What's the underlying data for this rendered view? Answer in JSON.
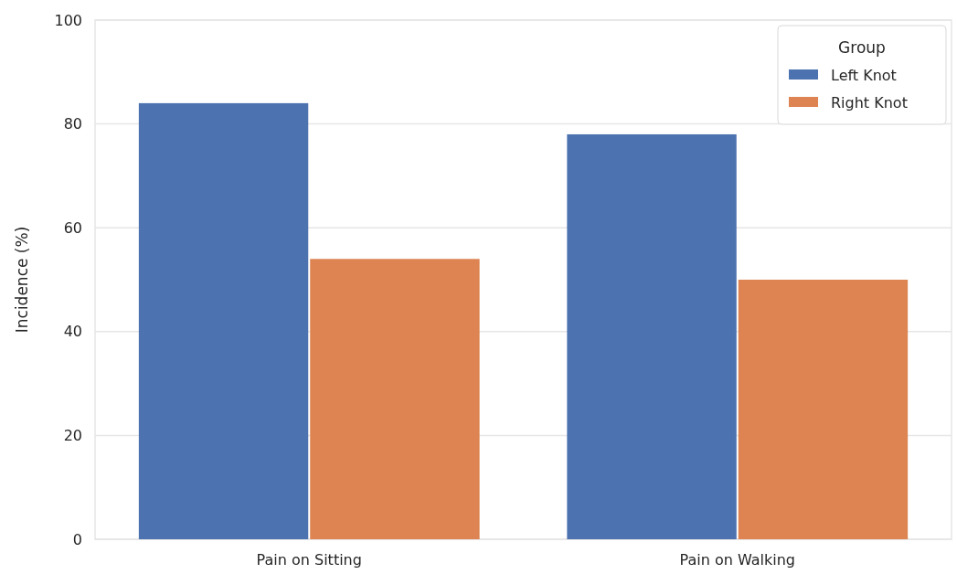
{
  "chart_data": {
    "type": "bar",
    "ylabel": "Incidence (%)",
    "legend_title": "Group",
    "categories": [
      "Pain on Sitting",
      "Pain on Walking"
    ],
    "series": [
      {
        "name": "Left Knot",
        "color": "#4c72b0",
        "values": [
          84,
          78
        ]
      },
      {
        "name": "Right Knot",
        "color": "#dd8452",
        "values": [
          54,
          50
        ]
      }
    ],
    "ylim": [
      0,
      100
    ],
    "yticks": [
      0,
      20,
      40,
      60,
      80,
      100
    ],
    "grid": "y",
    "legend": "top right"
  }
}
